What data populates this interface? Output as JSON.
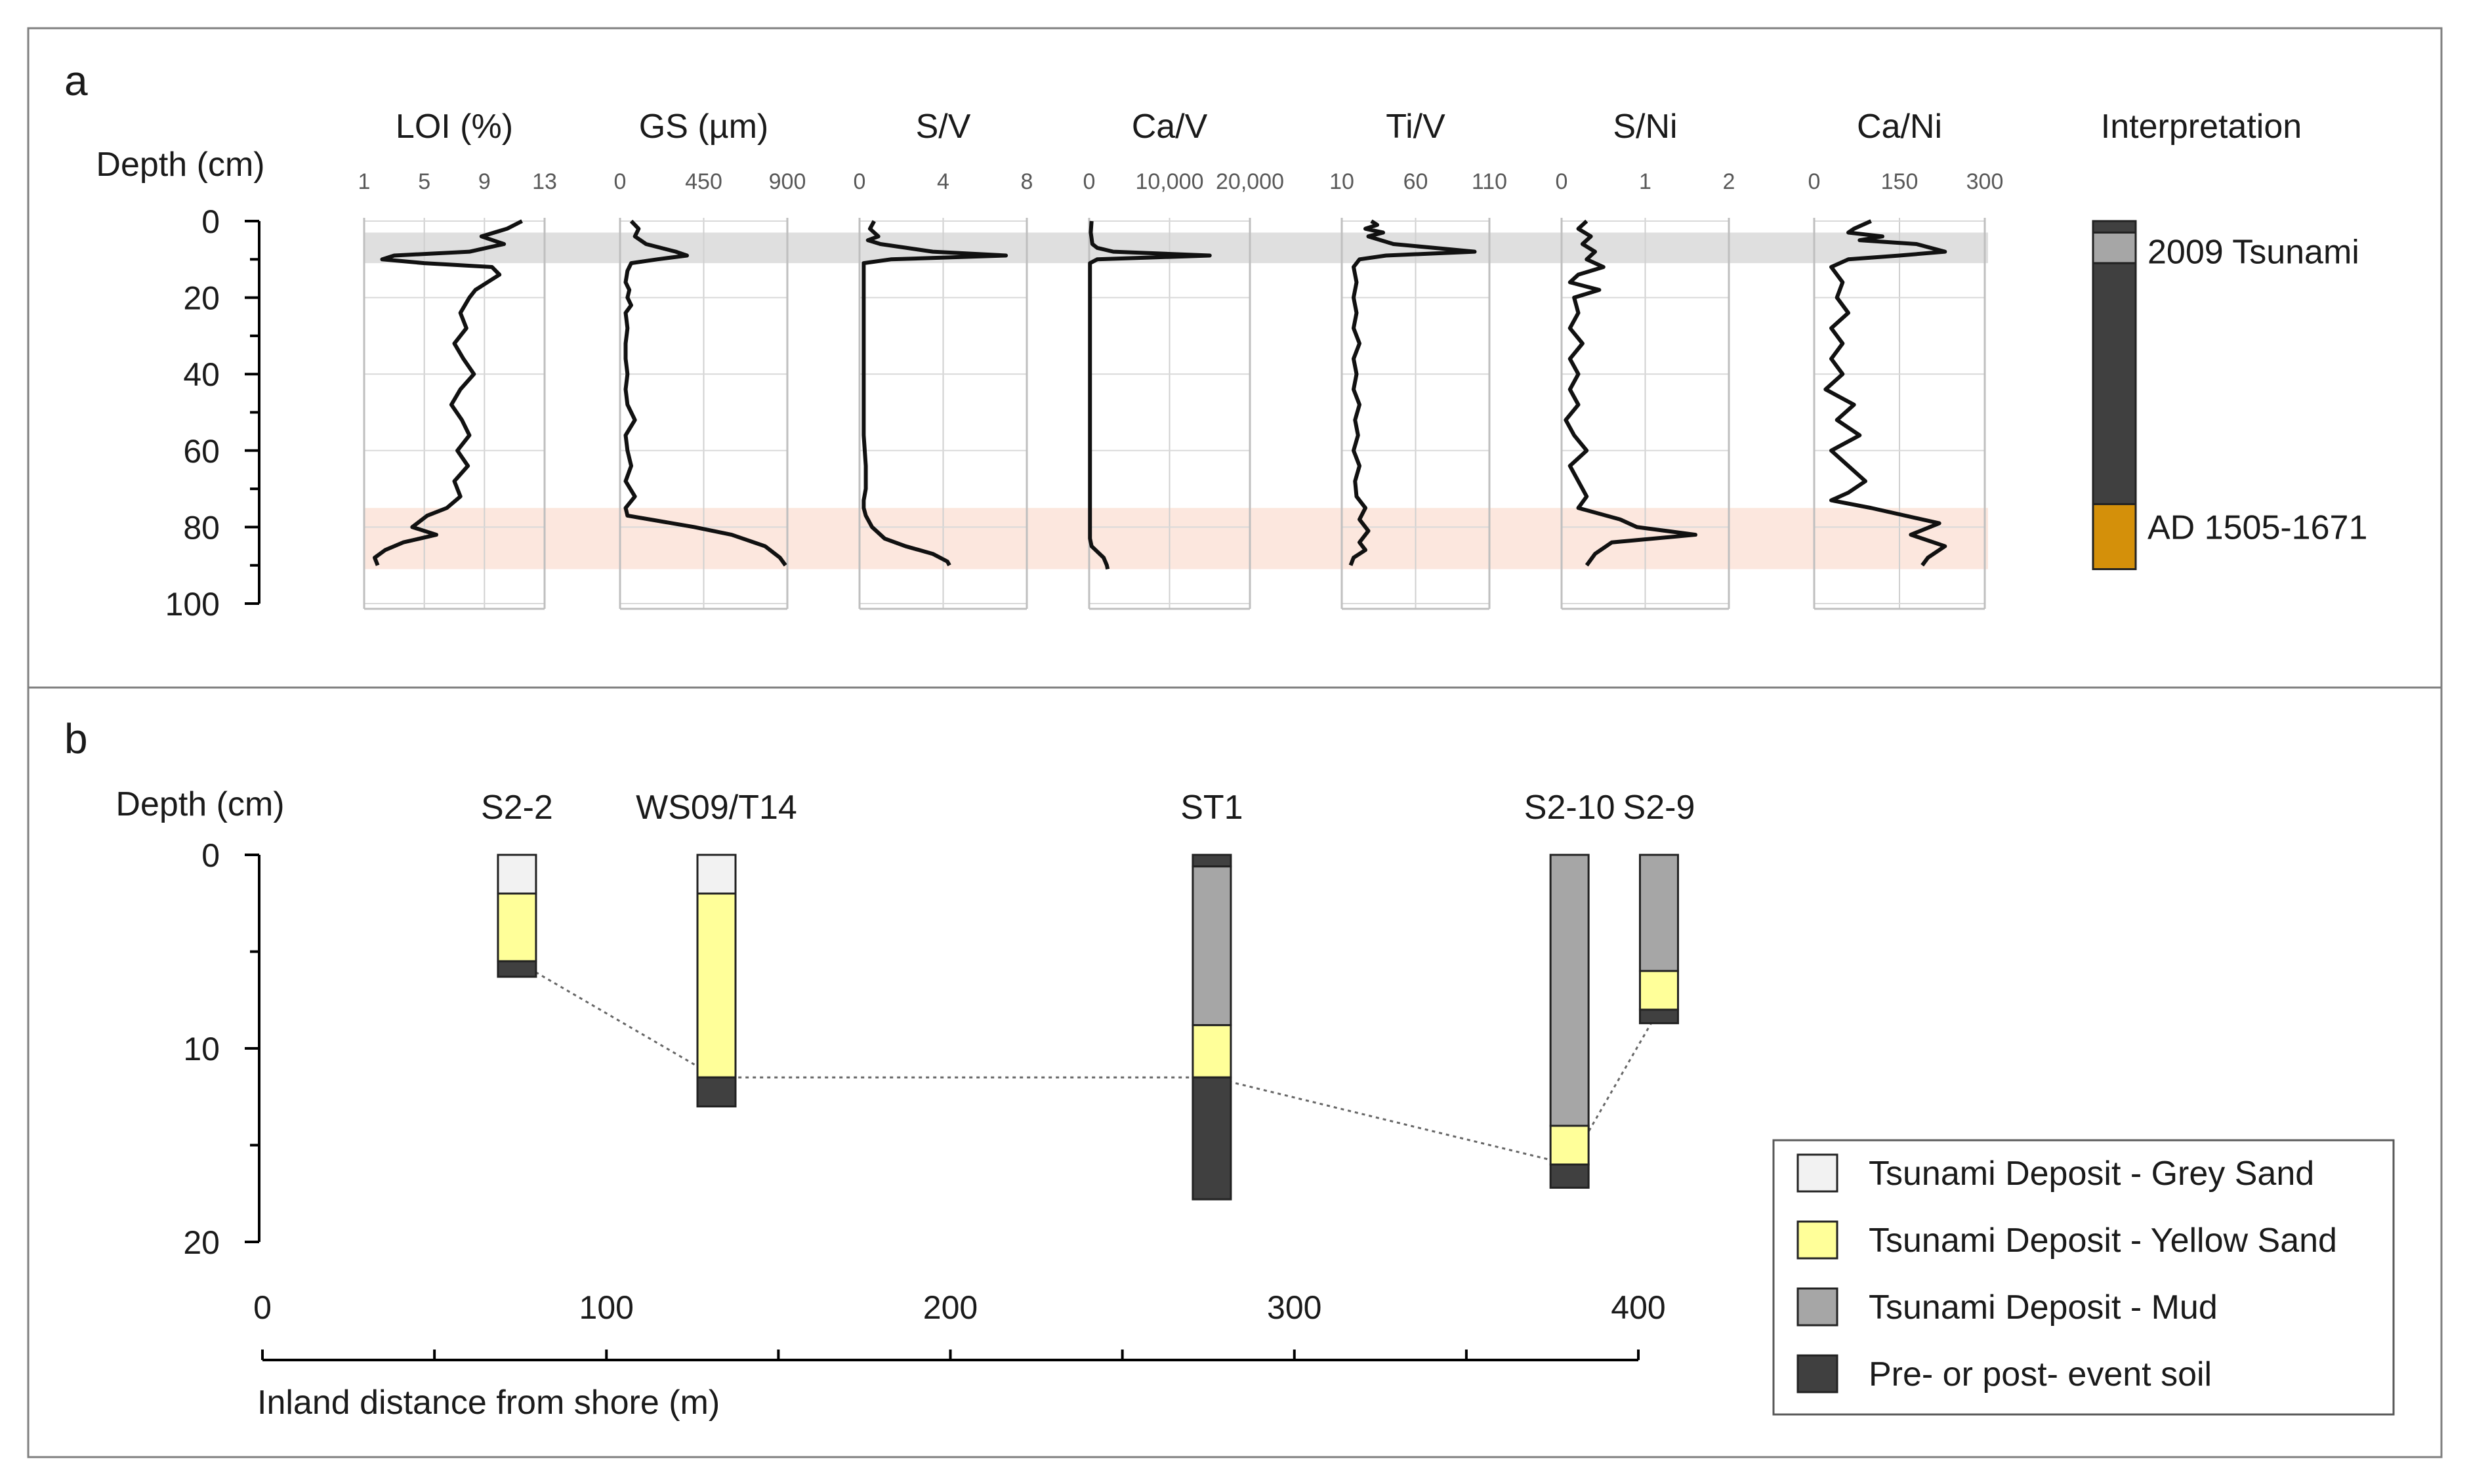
{
  "chart_data": [
    {
      "panel": "a",
      "type": "line",
      "depth_label": "Depth (cm)",
      "depth_ticks": [
        "0",
        "20",
        "40",
        "60",
        "80",
        "100"
      ],
      "depth_range": [
        0,
        100
      ],
      "bands": [
        {
          "name": "2009 Tsunami",
          "top": 3,
          "bottom": 11,
          "color": "#d9d9d9"
        },
        {
          "name": "AD 1505-1671",
          "top": 75,
          "bottom": 91,
          "color": "#fbe3d8"
        }
      ],
      "tracks": [
        {
          "title": "LOI (%)",
          "xmin": 1,
          "xmax": 13,
          "ticks": [
            1,
            5,
            9,
            13
          ],
          "tick_labels": [
            "1",
            "5",
            "9",
            "13"
          ],
          "x": [
            11.5,
            10.5,
            8.8,
            10.3,
            8.0,
            3.0,
            2.2,
            5.0,
            9.5,
            10.0,
            9.2,
            8.4,
            8.0,
            7.4,
            7.8,
            7.0,
            7.6,
            8.3,
            7.4,
            6.8,
            7.5,
            8.0,
            7.2,
            7.9,
            7.0,
            7.4,
            6.5,
            5.2,
            4.2,
            5.8,
            3.6,
            2.4,
            1.7,
            1.9
          ],
          "depth": [
            0,
            2,
            4,
            6,
            8,
            9,
            10,
            11,
            12,
            14,
            16,
            18,
            20,
            24,
            28,
            32,
            36,
            40,
            44,
            48,
            52,
            56,
            60,
            64,
            68,
            72,
            75,
            77,
            80,
            82,
            84,
            86,
            88,
            90
          ]
        },
        {
          "title": "GS (µm)",
          "xmin": 0,
          "xmax": 900,
          "ticks": [
            0,
            450,
            900
          ],
          "tick_labels": [
            "0",
            "450",
            "900"
          ],
          "x": [
            60,
            100,
            80,
            140,
            300,
            360,
            200,
            60,
            40,
            30,
            50,
            40,
            60,
            30,
            40,
            30,
            30,
            40,
            30,
            40,
            80,
            30,
            40,
            60,
            30,
            80,
            30,
            40,
            160,
            400,
            600,
            780,
            860,
            890
          ],
          "depth": [
            0,
            2,
            4,
            6,
            8,
            9,
            10,
            11,
            13,
            16,
            18,
            20,
            22,
            24,
            28,
            32,
            36,
            40,
            44,
            48,
            52,
            56,
            60,
            64,
            68,
            72,
            75,
            77,
            78,
            80,
            82,
            85,
            88,
            90
          ]
        },
        {
          "title": "S/V",
          "xmin": 0,
          "xmax": 8,
          "ticks": [
            0,
            4,
            8
          ],
          "tick_labels": [
            "0",
            "4",
            "8"
          ],
          "x": [
            0.7,
            0.5,
            0.9,
            0.4,
            1.0,
            3.5,
            7.0,
            1.5,
            0.2,
            0.2,
            0.2,
            0.2,
            0.2,
            0.2,
            0.2,
            0.3,
            0.3,
            0.2,
            0.2,
            0.3,
            0.6,
            1.2,
            2.2,
            3.5,
            4.2,
            4.3
          ],
          "depth": [
            0,
            2,
            4,
            5,
            6,
            8,
            9,
            10,
            11,
            16,
            24,
            32,
            40,
            48,
            56,
            64,
            70,
            73,
            75,
            77,
            80,
            83,
            85,
            87,
            89,
            90
          ]
        },
        {
          "title": "Ca/V",
          "xmin": 0,
          "xmax": 20000,
          "ticks": [
            0,
            10000,
            20000
          ],
          "tick_labels": [
            "0",
            "10,000",
            "20,000"
          ],
          "x": [
            300,
            200,
            400,
            1000,
            3000,
            15000,
            1000,
            100,
            100,
            100,
            100,
            100,
            100,
            100,
            300,
            800,
            1800,
            2200,
            2300
          ],
          "depth": [
            0,
            3,
            6,
            7,
            8,
            9,
            10,
            11,
            20,
            40,
            60,
            75,
            80,
            83,
            85,
            86,
            88,
            90,
            91
          ]
        },
        {
          "title": "Ti/V",
          "xmin": 10,
          "xmax": 110,
          "ticks": [
            10,
            60,
            110
          ],
          "tick_labels": [
            "10",
            "60",
            "110"
          ],
          "x": [
            30,
            34,
            26,
            38,
            28,
            45,
            100,
            40,
            22,
            18,
            20,
            18,
            20,
            18,
            22,
            18,
            20,
            18,
            22,
            19,
            21,
            18,
            22,
            19,
            20,
            26,
            22,
            28,
            22,
            26,
            18,
            16
          ],
          "depth": [
            0,
            1,
            2,
            3,
            4,
            6,
            8,
            9,
            10,
            12,
            16,
            20,
            24,
            28,
            32,
            36,
            40,
            44,
            48,
            52,
            56,
            60,
            64,
            68,
            72,
            75,
            78,
            81,
            84,
            86,
            88,
            90
          ]
        },
        {
          "title": "S/Ni",
          "xmin": 0,
          "xmax": 2,
          "ticks": [
            0,
            1,
            2
          ],
          "tick_labels": [
            "0",
            "1",
            "2"
          ],
          "x": [
            0.3,
            0.2,
            0.35,
            0.25,
            0.4,
            0.3,
            0.5,
            0.2,
            0.1,
            0.45,
            0.15,
            0.2,
            0.1,
            0.25,
            0.1,
            0.2,
            0.1,
            0.2,
            0.05,
            0.15,
            0.3,
            0.1,
            0.2,
            0.3,
            0.2,
            0.7,
            0.9,
            1.6,
            0.6,
            0.4,
            0.3
          ],
          "depth": [
            0,
            2,
            4,
            6,
            8,
            10,
            12,
            14,
            16,
            18,
            20,
            24,
            28,
            32,
            36,
            40,
            44,
            48,
            52,
            56,
            60,
            64,
            68,
            72,
            75,
            78,
            80,
            82,
            84,
            87,
            90
          ]
        },
        {
          "title": "Ca/Ni",
          "xmin": 0,
          "xmax": 300,
          "ticks": [
            0,
            150,
            300
          ],
          "tick_labels": [
            "0",
            "150",
            "300"
          ],
          "x": [
            100,
            70,
            60,
            120,
            80,
            180,
            230,
            150,
            60,
            30,
            50,
            40,
            60,
            30,
            50,
            30,
            50,
            20,
            70,
            40,
            80,
            30,
            60,
            90,
            60,
            30,
            100,
            220,
            170,
            230,
            200,
            190
          ],
          "depth": [
            0,
            2,
            3,
            4,
            5,
            6,
            8,
            9,
            10,
            12,
            16,
            20,
            24,
            28,
            32,
            36,
            40,
            44,
            48,
            52,
            56,
            60,
            64,
            68,
            71,
            73,
            75,
            79,
            82,
            85,
            88,
            90
          ]
        }
      ],
      "interpretation": {
        "title": "Interpretation",
        "segments": [
          {
            "top": 0,
            "bottom": 3,
            "color": "#404040"
          },
          {
            "top": 3,
            "bottom": 11,
            "color": "#a6a6a6"
          },
          {
            "top": 11,
            "bottom": 74,
            "color": "#404040"
          },
          {
            "top": 74,
            "bottom": 91,
            "color": "#d4900a"
          }
        ],
        "labels": [
          {
            "text": "2009 Tsunami",
            "depth": 8
          },
          {
            "text": "AD 1505-1671",
            "depth": 80
          }
        ]
      }
    },
    {
      "panel": "b",
      "type": "bar",
      "depth_label": "Depth (cm)",
      "depth_ticks": [
        "0",
        "10",
        "20"
      ],
      "depth_range": [
        0,
        20
      ],
      "xlabel": "Inland distance from shore (m)",
      "xlim": [
        0,
        400
      ],
      "x_ticks": [
        "0",
        "100",
        "200",
        "300",
        "400"
      ],
      "units": {
        "grey_sand": "#f2f2f2",
        "yellow_sand": "#ffff99",
        "mud": "#a6a6a6",
        "soil": "#404040"
      },
      "cores": [
        {
          "name": "S2-2",
          "distance": 74,
          "layers": [
            {
              "unit": "grey_sand",
              "top": 0,
              "bottom": 2
            },
            {
              "unit": "yellow_sand",
              "top": 2,
              "bottom": 5.5
            },
            {
              "unit": "soil",
              "top": 5.5,
              "bottom": 6.3
            }
          ]
        },
        {
          "name": "WS09/T14",
          "distance": 132,
          "layers": [
            {
              "unit": "grey_sand",
              "top": 0,
              "bottom": 2
            },
            {
              "unit": "yellow_sand",
              "top": 2,
              "bottom": 11.5
            },
            {
              "unit": "soil",
              "top": 11.5,
              "bottom": 13
            }
          ]
        },
        {
          "name": "ST1",
          "distance": 276,
          "layers": [
            {
              "unit": "soil",
              "top": 0,
              "bottom": 0.6
            },
            {
              "unit": "mud",
              "top": 0.6,
              "bottom": 8.8
            },
            {
              "unit": "yellow_sand",
              "top": 8.8,
              "bottom": 11.5
            },
            {
              "unit": "soil",
              "top": 11.5,
              "bottom": 17.8
            }
          ]
        },
        {
          "name": "S2-10",
          "distance": 380,
          "layers": [
            {
              "unit": "mud",
              "top": 0,
              "bottom": 14
            },
            {
              "unit": "yellow_sand",
              "top": 14,
              "bottom": 16
            },
            {
              "unit": "soil",
              "top": 16,
              "bottom": 17.2
            }
          ]
        },
        {
          "name": "S2-9",
          "distance": 406,
          "layers": [
            {
              "unit": "mud",
              "top": 0,
              "bottom": 6
            },
            {
              "unit": "yellow_sand",
              "top": 6,
              "bottom": 8
            },
            {
              "unit": "soil",
              "top": 8,
              "bottom": 8.7
            }
          ]
        }
      ],
      "correlation": [
        {
          "distance": 74,
          "depth": 5.5
        },
        {
          "distance": 132,
          "depth": 11.5
        },
        {
          "distance": 276,
          "depth": 11.5
        },
        {
          "distance": 380,
          "depth": 16
        },
        {
          "distance": 406,
          "depth": 8
        }
      ],
      "legend": {
        "position": "bottom-right",
        "entries": [
          {
            "label": "Tsunami Deposit - Grey Sand",
            "color": "#f2f2f2"
          },
          {
            "label": "Tsunami Deposit - Yellow Sand",
            "color": "#ffff99"
          },
          {
            "label": "Tsunami Deposit - Mud",
            "color": "#a6a6a6"
          },
          {
            "label": "Pre- or post- event soil",
            "color": "#404040"
          }
        ]
      }
    }
  ],
  "panel_labels": [
    "a",
    "b"
  ]
}
